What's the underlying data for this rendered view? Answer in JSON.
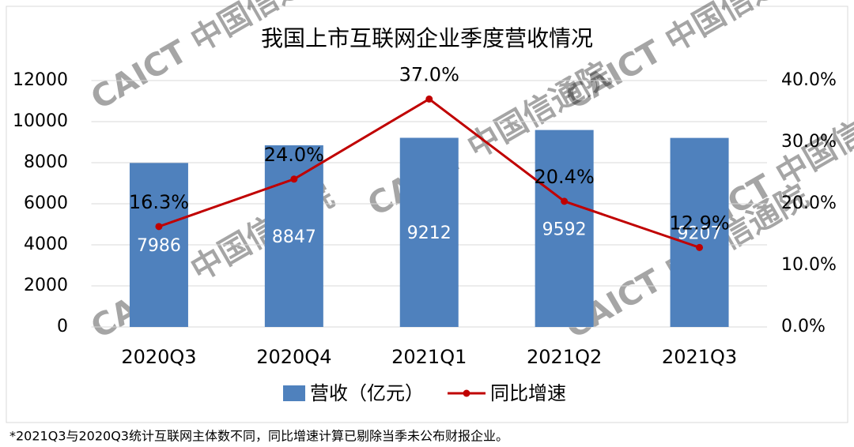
{
  "chart_data": {
    "type": "bar_line",
    "title": "我国上市互联网企业季度营收情况",
    "categories": [
      "2020Q3",
      "2020Q4",
      "2021Q1",
      "2021Q2",
      "2021Q3"
    ],
    "series": [
      {
        "name": "营收（亿元）",
        "type": "bar",
        "color": "#4f81bd",
        "values": [
          7986,
          8847,
          9212,
          9592,
          9207
        ]
      },
      {
        "name": "同比增速",
        "type": "line",
        "axis": "y2",
        "color": "#c00000",
        "values": [
          16.3,
          24.0,
          37.0,
          20.4,
          12.9
        ],
        "value_labels": [
          "16.3%",
          "24.0%",
          "37.0%",
          "20.4%",
          "12.9%"
        ]
      }
    ],
    "ylim": [
      0,
      12000
    ],
    "yticks": [
      0,
      2000,
      4000,
      6000,
      8000,
      10000,
      12000
    ],
    "y2lim": [
      0,
      40
    ],
    "y2ticks": [
      {
        "value": 0,
        "label": "0.0%"
      },
      {
        "value": 10,
        "label": "10.0%"
      },
      {
        "value": 20,
        "label": "20.0%"
      },
      {
        "value": 30,
        "label": "30.0%"
      },
      {
        "value": 40,
        "label": "40.0%"
      }
    ],
    "grid": true,
    "legend": "bottom",
    "watermark": "CAICT 中国信通院",
    "footnote": "*2021Q3与2020Q3统计互联网主体数不同，同比增速计算已剔除当季未公布财报企业。"
  }
}
